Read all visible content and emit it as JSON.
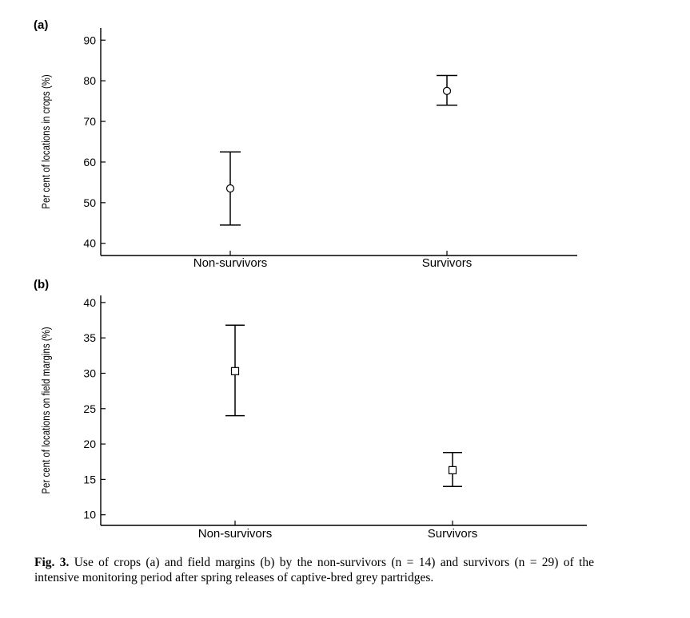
{
  "chart_data": [
    {
      "type": "scatter",
      "panel_label": "(a)",
      "ylabel": "Per cent of locations in crops (%)",
      "categories": [
        "Non-survivors",
        "Survivors"
      ],
      "ylim": [
        37,
        93
      ],
      "yticks": [
        40,
        50,
        60,
        70,
        80,
        90
      ],
      "marker": "circle",
      "points": [
        {
          "category": "Non-survivors",
          "mean": 53.5,
          "lower": 44.5,
          "upper": 62.5
        },
        {
          "category": "Survivors",
          "mean": 77.5,
          "lower": 74.0,
          "upper": 81.3
        }
      ]
    },
    {
      "type": "scatter",
      "panel_label": "(b)",
      "ylabel": "Per cent of locations on field margins (%)",
      "categories": [
        "Non-survivors",
        "Survivors"
      ],
      "ylim": [
        8.5,
        41
      ],
      "yticks": [
        10,
        15,
        20,
        25,
        30,
        35,
        40
      ],
      "marker": "square",
      "points": [
        {
          "category": "Non-survivors",
          "mean": 30.3,
          "lower": 24.0,
          "upper": 36.8
        },
        {
          "category": "Survivors",
          "mean": 16.3,
          "lower": 14.0,
          "upper": 18.8
        }
      ]
    }
  ],
  "caption": {
    "fig_label": "Fig. 3.",
    "text": "Use of crops (a) and field margins (b) by the non-survivors (n = 14) and survivors (n = 29) of the intensive monitoring period after spring releases of captive-bred grey partridges."
  }
}
